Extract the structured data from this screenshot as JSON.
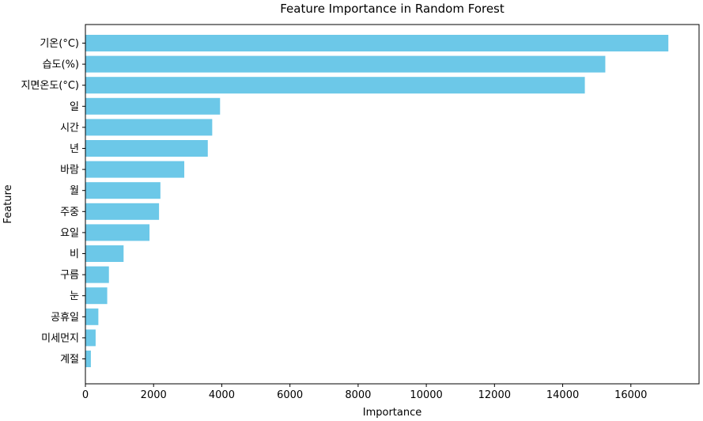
{
  "chart_data": {
    "type": "bar",
    "orientation": "horizontal",
    "title": "Feature Importance in Random Forest",
    "xlabel": "Importance",
    "ylabel": "Feature",
    "categories": [
      "기온(°C)",
      "습도(%)",
      "지면온도(°C)",
      "일",
      "시간",
      "년",
      "바람",
      "월",
      "주중",
      "요일",
      "비",
      "구름",
      "눈",
      "공휴일",
      "미세먼지",
      "계절"
    ],
    "values": [
      17100,
      15250,
      14650,
      3950,
      3720,
      3590,
      2900,
      2200,
      2160,
      1880,
      1120,
      690,
      640,
      380,
      300,
      160
    ],
    "xlim": [
      0,
      18000
    ],
    "xticks": [
      0,
      2000,
      4000,
      6000,
      8000,
      10000,
      12000,
      14000,
      16000
    ],
    "bar_color": "#6cc8e8",
    "grid": false,
    "legend": false
  }
}
